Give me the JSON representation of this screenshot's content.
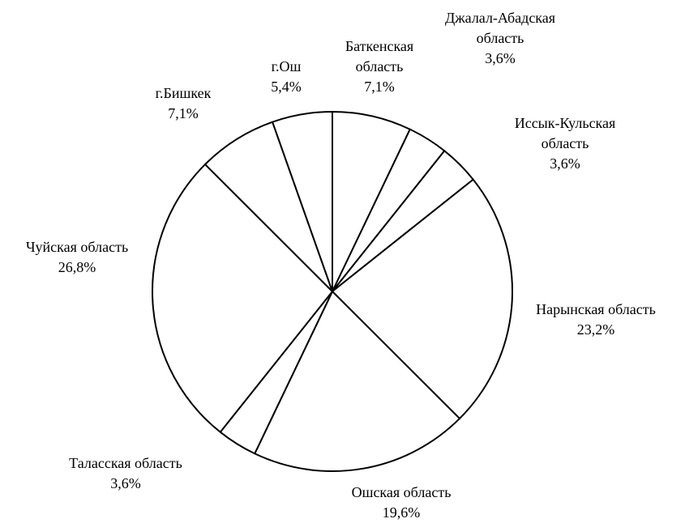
{
  "chart_data": {
    "type": "pie",
    "categories": [
      "Баткенская область",
      "Джалал-Абадская область",
      "Иссык-Кульская область",
      "Нарынская область",
      "Ошская область",
      "Таласская область",
      "Чуйская область",
      "г.Бишкек",
      "г.Ош"
    ],
    "values": [
      7.1,
      3.6,
      3.6,
      23.2,
      19.6,
      3.6,
      26.8,
      7.1,
      5.4
    ],
    "value_labels": [
      "7,1%",
      "3,6%",
      "3,6%",
      "23,2%",
      "19,6%",
      "3,6%",
      "26,8%",
      "7,1%",
      "5,4%"
    ],
    "color": "#ffffff"
  }
}
